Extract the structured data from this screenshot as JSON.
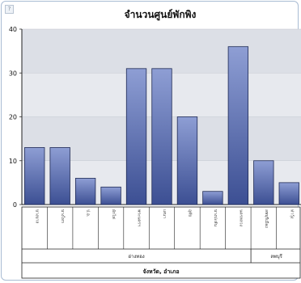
{
  "chart_data": {
    "type": "bar",
    "title": "จำนวนศูนย์พักพิง",
    "xlabel": "จังหวัด, อำเภอ",
    "ylabel": "",
    "ylim": [
      0,
      40
    ],
    "yticks": [
      0,
      10,
      20,
      30,
      40
    ],
    "grid": true,
    "categories": [
      "บางบาล",
      "บางไทร",
      "ป.อ.",
      "ผักไห่",
      "พระนครฯ",
      "เสนา",
      "อุทัย",
      "บางปะหัน",
      "นครหลวง",
      "ลพบุรีเมือง",
      "ท่าวุ้ง"
    ],
    "groups": [
      {
        "label": "อ่างทอง",
        "count": 9
      },
      {
        "label": "ลพบุรี",
        "count": 2
      }
    ],
    "values": [
      13,
      13,
      6,
      4,
      31,
      31,
      20,
      3,
      36,
      10,
      5
    ],
    "colors": {
      "bar_top": "#8e9ed4",
      "bar_bottom": "#3c4f93",
      "bar_edge": "#1f2a55",
      "band": "#e7e9ee",
      "band_alt": "#dcdfe6"
    }
  },
  "ui": {
    "corner_glyph": "?"
  }
}
